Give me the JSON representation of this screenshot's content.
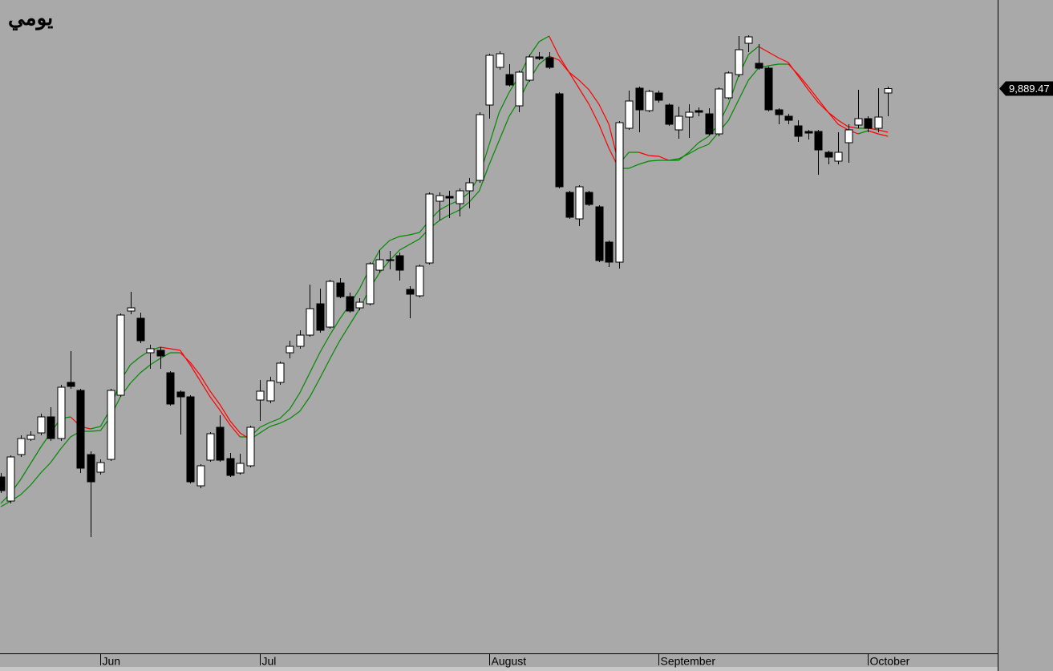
{
  "chart_data": {
    "type": "candlestick",
    "title": "يومي",
    "categories": [
      null,
      null,
      null,
      null,
      null,
      null,
      null,
      null,
      null,
      null,
      "Jun",
      null,
      null,
      null,
      null,
      null,
      null,
      null,
      null,
      null,
      null,
      null,
      null,
      null,
      null,
      null,
      "Jul",
      null,
      null,
      null,
      null,
      null,
      null,
      null,
      null,
      null,
      null,
      null,
      null,
      null,
      null,
      null,
      null,
      null,
      null,
      null,
      null,
      null,
      null,
      "August",
      null,
      null,
      null,
      null,
      null,
      null,
      null,
      null,
      null,
      null,
      null,
      null,
      null,
      null,
      null,
      null,
      "September",
      null,
      null,
      null,
      null,
      null,
      null,
      null,
      null,
      null,
      null,
      null,
      null,
      null,
      null,
      null,
      null,
      null,
      null,
      null,
      null,
      "October",
      null,
      null
    ],
    "open": [
      9405,
      9375,
      9433,
      9452,
      9460,
      9480,
      9453,
      9523,
      9513,
      9433,
      9411,
      9427,
      9507,
      9612,
      9603,
      9560,
      9563,
      9535,
      9511,
      9505,
      9394,
      9426,
      9467,
      9428,
      9410,
      9419,
      9501,
      9500,
      9523,
      9560,
      9568,
      9582,
      9621,
      9592,
      9647,
      9630,
      9616,
      9621,
      9663,
      9676,
      9681,
      9639,
      9631,
      9672,
      9749,
      9755,
      9746,
      9762,
      9775,
      9869,
      9916,
      9907,
      9868,
      9900,
      9929,
      9928,
      9883,
      9760,
      9727,
      9760,
      9742,
      9698,
      9673,
      9840,
      9890,
      9862,
      9884,
      9869,
      9838,
      9854,
      9862,
      9858,
      9833,
      9878,
      9907,
      9946,
      9921,
      9915,
      9863,
      9855,
      9843,
      9836,
      9836,
      9810,
      9799,
      9822,
      9844,
      9852,
      9840,
      9884
    ],
    "high": [
      9410,
      9432,
      9457,
      9462,
      9484,
      9492,
      9520,
      9562,
      9515,
      9437,
      9427,
      9515,
      9609,
      9636,
      9610,
      9570,
      9567,
      9537,
      9513,
      9507,
      9421,
      9461,
      9482,
      9435,
      9434,
      9469,
      9526,
      9530,
      9549,
      9575,
      9588,
      9645,
      9640,
      9651,
      9653,
      9635,
      9628,
      9673,
      9688,
      9687,
      9685,
      9643,
      9670,
      9760,
      9760,
      9762,
      9765,
      9778,
      9860,
      9933,
      9936,
      9920,
      9912,
      9932,
      9935,
      9935,
      9885,
      9762,
      9769,
      9762,
      9744,
      9700,
      9849,
      9887,
      9892,
      9888,
      9887,
      9871,
      9867,
      9870,
      9866,
      9865,
      9891,
      9911,
      9955,
      9956,
      9945,
      9917,
      9865,
      9858,
      9850,
      9838,
      9838,
      9812,
      9835,
      9845,
      9888,
      9855,
      9890,
      9892
    ],
    "low": [
      9385,
      9372,
      9430,
      9450,
      9457,
      9450,
      9450,
      9515,
      9410,
      9330,
      9408,
      9425,
      9505,
      9608,
      9572,
      9540,
      9540,
      9494,
      9458,
      9397,
      9391,
      9424,
      9424,
      9405,
      9408,
      9417,
      9475,
      9497,
      9520,
      9553,
      9565,
      9580,
      9585,
      9590,
      9628,
      9610,
      9613,
      9619,
      9660,
      9664,
      9650,
      9603,
      9629,
      9670,
      9725,
      9728,
      9730,
      9740,
      9772,
      9852,
      9913,
      9892,
      9860,
      9898,
      9925,
      9914,
      9765,
      9727,
      9718,
      9743,
      9673,
      9667,
      9665,
      9838,
      9835,
      9860,
      9872,
      9843,
      9827,
      9828,
      9855,
      9831,
      9830,
      9876,
      9904,
      9935,
      9913,
      9861,
      9845,
      9845,
      9823,
      9826,
      9782,
      9795,
      9795,
      9797,
      9840,
      9835,
      9835,
      9855
    ],
    "close": [
      9388,
      9430,
      9453,
      9457,
      9480,
      9453,
      9517,
      9518,
      9416,
      9399,
      9423,
      9513,
      9607,
      9616,
      9575,
      9565,
      9556,
      9496,
      9505,
      9399,
      9419,
      9459,
      9426,
      9407,
      9422,
      9467,
      9512,
      9525,
      9547,
      9568,
      9582,
      9615,
      9588,
      9649,
      9630,
      9612,
      9623,
      9671,
      9676,
      9675,
      9663,
      9633,
      9668,
      9758,
      9756,
      9753,
      9762,
      9772,
      9857,
      9931,
      9933,
      9894,
      9910,
      9929,
      9927,
      9916,
      9767,
      9729,
      9767,
      9745,
      9675,
      9673,
      9847,
      9874,
      9863,
      9886,
      9875,
      9845,
      9855,
      9860,
      9860,
      9833,
      9889,
      9909,
      9938,
      9954,
      9915,
      9863,
      9857,
      9850,
      9830,
      9834,
      9813,
      9804,
      9810,
      9838,
      9852,
      9840,
      9854,
      9889.47
    ],
    "up_color": "#ffffff",
    "down_color": "#000000",
    "lines": [
      {
        "values": [
          9372,
          9385,
          9402,
          9422,
          9442,
          9460,
          9478,
          9480,
          9468,
          9465,
          9468,
          9490,
          9525,
          9545,
          9555,
          9563,
          9567,
          9565,
          9563,
          9545,
          9525,
          9505,
          9488,
          9470,
          9455,
          9455,
          9467,
          9473,
          9478,
          9490,
          9510,
          9535,
          9560,
          9582,
          9602,
          9620,
          9640,
          9665,
          9688,
          9700,
          9705,
          9707,
          9710,
          9725,
          9738,
          9745,
          9750,
          9760,
          9780,
          9820,
          9860,
          9885,
          9905,
          9930,
          9948,
          9955,
          9930,
          9910,
          9900,
          9888,
          9870,
          9845,
          9795,
          9810,
          9810,
          9806,
          9805,
          9800,
          9800,
          9810,
          9822,
          9830,
          9845,
          9870,
          9905,
          9932,
          9942,
          9935,
          9928,
          9922,
          9905,
          9888,
          9872,
          9860,
          9850,
          9842,
          9840,
          9840,
          9838,
          9835
        ]
      },
      {
        "values": [
          9368,
          9375,
          9383,
          9395,
          9410,
          9423,
          9440,
          9455,
          9462,
          9462,
          9463,
          9480,
          9505,
          9522,
          9535,
          9545,
          9553,
          9560,
          9560,
          9548,
          9532,
          9512,
          9495,
          9475,
          9460,
          9452,
          9460,
          9468,
          9472,
          9478,
          9487,
          9505,
          9528,
          9552,
          9575,
          9595,
          9615,
          9640,
          9660,
          9675,
          9688,
          9695,
          9702,
          9715,
          9725,
          9732,
          9738,
          9748,
          9762,
          9795,
          9825,
          9855,
          9875,
          9900,
          9920,
          9930,
          9925,
          9910,
          9890,
          9870,
          9845,
          9815,
          9790,
          9790,
          9795,
          9799,
          9800,
          9800,
          9802,
          9808,
          9815,
          9820,
          9835,
          9850,
          9875,
          9900,
          9915,
          9918,
          9920,
          9920,
          9907,
          9892,
          9876,
          9860,
          9845,
          9838,
          9833,
          9837,
          9833,
          9830
        ]
      }
    ],
    "rising_color": "#008a00",
    "falling_color": "#ff0000",
    "last_price": {
      "value": 9889.47,
      "label": "9,889.47"
    },
    "ylim": [
      9185,
      10000
    ]
  }
}
